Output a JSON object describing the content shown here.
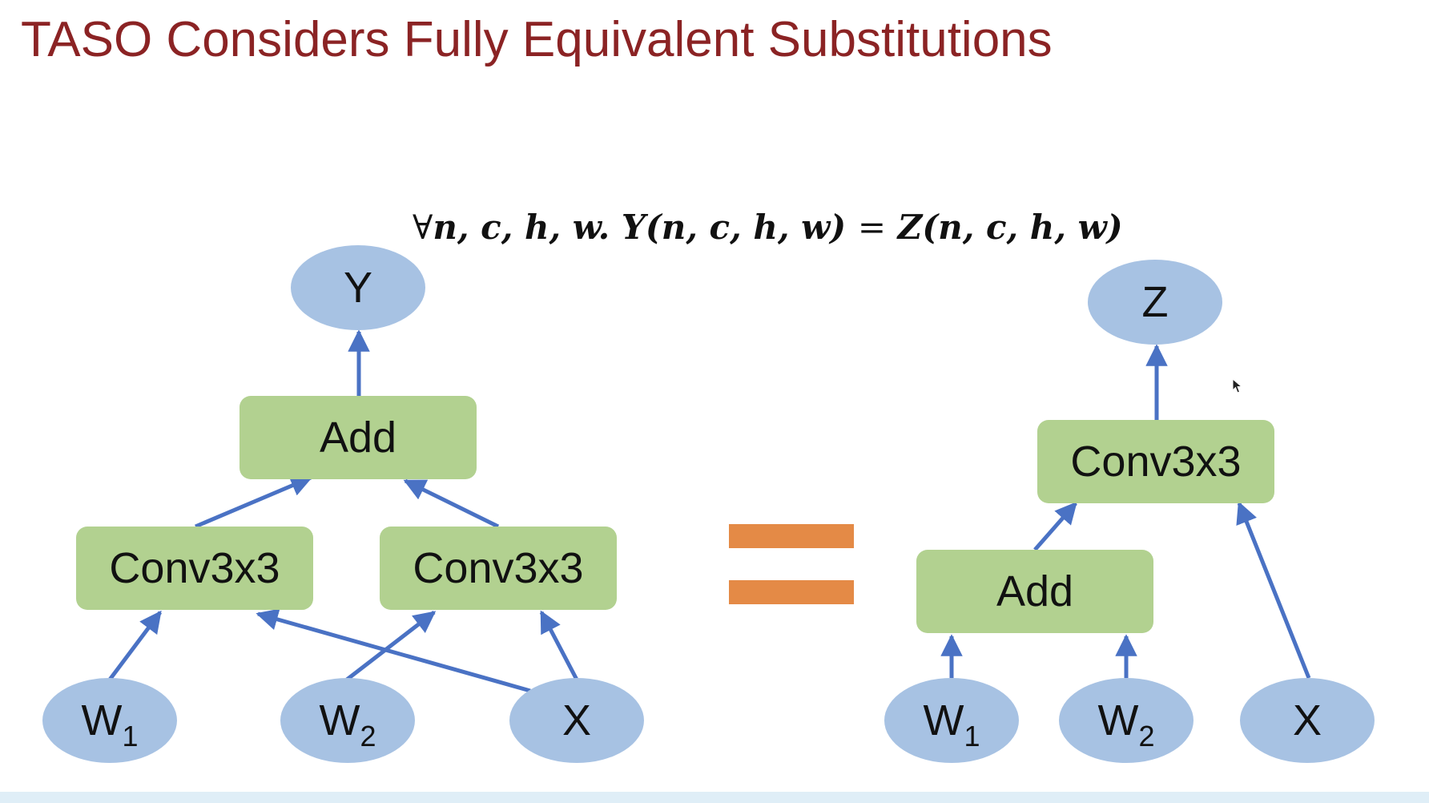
{
  "title": "TASO Considers Fully Equivalent Substitutions",
  "equation": {
    "forall": "∀",
    "vars": "n, c, h, w.",
    "lhs_name": "Y",
    "lhs_args": "(n, c, h, w)",
    "equals": "=",
    "rhs_name": "Z",
    "rhs_args": "(n, c, h, w)"
  },
  "left_graph": {
    "output": "Y",
    "add": "Add",
    "conv_left": "Conv3x3",
    "conv_right": "Conv3x3",
    "w1": {
      "base": "W",
      "sub": "1"
    },
    "w2": {
      "base": "W",
      "sub": "2"
    },
    "x": "X"
  },
  "right_graph": {
    "output": "Z",
    "conv": "Conv3x3",
    "add": "Add",
    "w1": {
      "base": "W",
      "sub": "1"
    },
    "w2": {
      "base": "W",
      "sub": "2"
    },
    "x": "X"
  },
  "colors": {
    "title": "#8b2324",
    "tensor_fill": "#a7c2e3",
    "op_fill": "#b2d190",
    "edge": "#4a72c4",
    "equals_sign": "#e48a46"
  }
}
